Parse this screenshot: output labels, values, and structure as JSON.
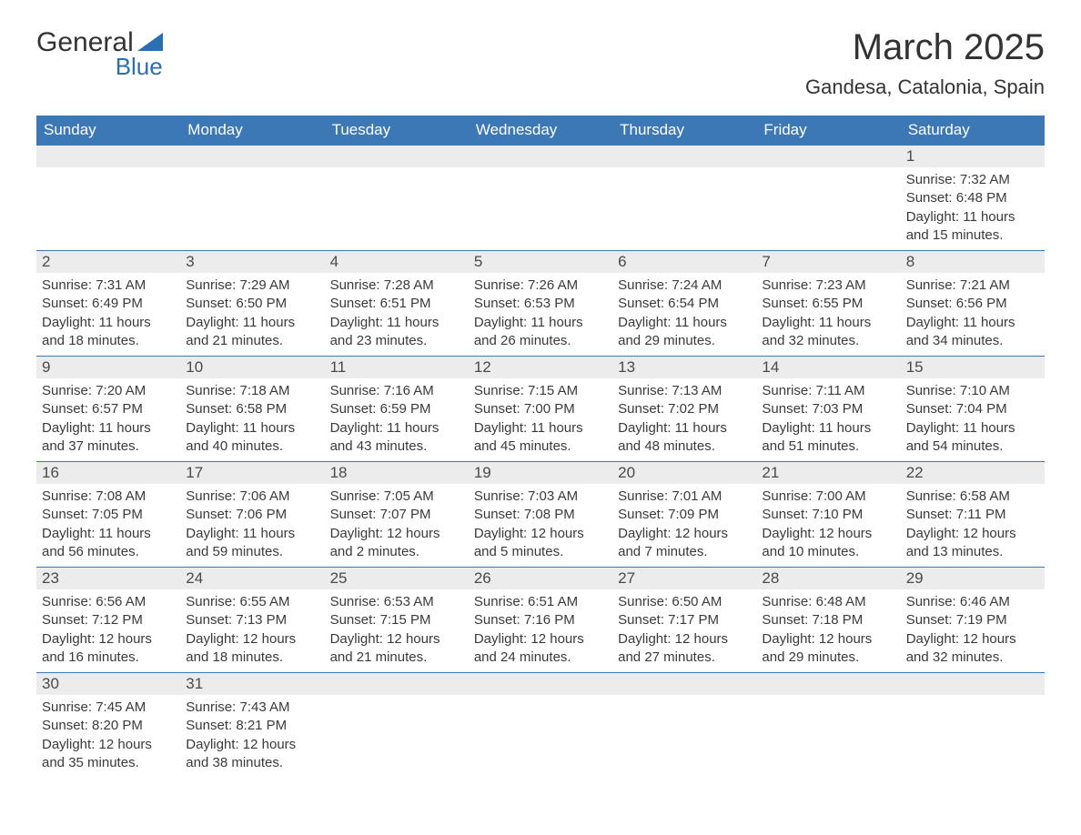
{
  "logo": {
    "text_general": "General",
    "text_blue": "Blue",
    "triangle_color": "#2c6fb0"
  },
  "title": "March 2025",
  "location": "Gandesa, Catalonia, Spain",
  "colors": {
    "header_bg": "#3b78b5",
    "header_fg": "#ffffff",
    "daynum_bg": "#ececec",
    "body_fg": "#3a3a3a",
    "row_border": "#3b78b5",
    "page_bg": "#ffffff"
  },
  "typography": {
    "title_fontsize_pt": 30,
    "location_fontsize_pt": 17,
    "dayheader_fontsize_pt": 13,
    "body_fontsize_pt": 11
  },
  "day_headers": [
    "Sunday",
    "Monday",
    "Tuesday",
    "Wednesday",
    "Thursday",
    "Friday",
    "Saturday"
  ],
  "labels": {
    "sunrise": "Sunrise:",
    "sunset": "Sunset:",
    "daylight": "Daylight:"
  },
  "weeks": [
    [
      null,
      null,
      null,
      null,
      null,
      null,
      {
        "n": "1",
        "sunrise": "7:32 AM",
        "sunset": "6:48 PM",
        "daylight": "11 hours and 15 minutes."
      }
    ],
    [
      {
        "n": "2",
        "sunrise": "7:31 AM",
        "sunset": "6:49 PM",
        "daylight": "11 hours and 18 minutes."
      },
      {
        "n": "3",
        "sunrise": "7:29 AM",
        "sunset": "6:50 PM",
        "daylight": "11 hours and 21 minutes."
      },
      {
        "n": "4",
        "sunrise": "7:28 AM",
        "sunset": "6:51 PM",
        "daylight": "11 hours and 23 minutes."
      },
      {
        "n": "5",
        "sunrise": "7:26 AM",
        "sunset": "6:53 PM",
        "daylight": "11 hours and 26 minutes."
      },
      {
        "n": "6",
        "sunrise": "7:24 AM",
        "sunset": "6:54 PM",
        "daylight": "11 hours and 29 minutes."
      },
      {
        "n": "7",
        "sunrise": "7:23 AM",
        "sunset": "6:55 PM",
        "daylight": "11 hours and 32 minutes."
      },
      {
        "n": "8",
        "sunrise": "7:21 AM",
        "sunset": "6:56 PM",
        "daylight": "11 hours and 34 minutes."
      }
    ],
    [
      {
        "n": "9",
        "sunrise": "7:20 AM",
        "sunset": "6:57 PM",
        "daylight": "11 hours and 37 minutes."
      },
      {
        "n": "10",
        "sunrise": "7:18 AM",
        "sunset": "6:58 PM",
        "daylight": "11 hours and 40 minutes."
      },
      {
        "n": "11",
        "sunrise": "7:16 AM",
        "sunset": "6:59 PM",
        "daylight": "11 hours and 43 minutes."
      },
      {
        "n": "12",
        "sunrise": "7:15 AM",
        "sunset": "7:00 PM",
        "daylight": "11 hours and 45 minutes."
      },
      {
        "n": "13",
        "sunrise": "7:13 AM",
        "sunset": "7:02 PM",
        "daylight": "11 hours and 48 minutes."
      },
      {
        "n": "14",
        "sunrise": "7:11 AM",
        "sunset": "7:03 PM",
        "daylight": "11 hours and 51 minutes."
      },
      {
        "n": "15",
        "sunrise": "7:10 AM",
        "sunset": "7:04 PM",
        "daylight": "11 hours and 54 minutes."
      }
    ],
    [
      {
        "n": "16",
        "sunrise": "7:08 AM",
        "sunset": "7:05 PM",
        "daylight": "11 hours and 56 minutes."
      },
      {
        "n": "17",
        "sunrise": "7:06 AM",
        "sunset": "7:06 PM",
        "daylight": "11 hours and 59 minutes."
      },
      {
        "n": "18",
        "sunrise": "7:05 AM",
        "sunset": "7:07 PM",
        "daylight": "12 hours and 2 minutes."
      },
      {
        "n": "19",
        "sunrise": "7:03 AM",
        "sunset": "7:08 PM",
        "daylight": "12 hours and 5 minutes."
      },
      {
        "n": "20",
        "sunrise": "7:01 AM",
        "sunset": "7:09 PM",
        "daylight": "12 hours and 7 minutes."
      },
      {
        "n": "21",
        "sunrise": "7:00 AM",
        "sunset": "7:10 PM",
        "daylight": "12 hours and 10 minutes."
      },
      {
        "n": "22",
        "sunrise": "6:58 AM",
        "sunset": "7:11 PM",
        "daylight": "12 hours and 13 minutes."
      }
    ],
    [
      {
        "n": "23",
        "sunrise": "6:56 AM",
        "sunset": "7:12 PM",
        "daylight": "12 hours and 16 minutes."
      },
      {
        "n": "24",
        "sunrise": "6:55 AM",
        "sunset": "7:13 PM",
        "daylight": "12 hours and 18 minutes."
      },
      {
        "n": "25",
        "sunrise": "6:53 AM",
        "sunset": "7:15 PM",
        "daylight": "12 hours and 21 minutes."
      },
      {
        "n": "26",
        "sunrise": "6:51 AM",
        "sunset": "7:16 PM",
        "daylight": "12 hours and 24 minutes."
      },
      {
        "n": "27",
        "sunrise": "6:50 AM",
        "sunset": "7:17 PM",
        "daylight": "12 hours and 27 minutes."
      },
      {
        "n": "28",
        "sunrise": "6:48 AM",
        "sunset": "7:18 PM",
        "daylight": "12 hours and 29 minutes."
      },
      {
        "n": "29",
        "sunrise": "6:46 AM",
        "sunset": "7:19 PM",
        "daylight": "12 hours and 32 minutes."
      }
    ],
    [
      {
        "n": "30",
        "sunrise": "7:45 AM",
        "sunset": "8:20 PM",
        "daylight": "12 hours and 35 minutes."
      },
      {
        "n": "31",
        "sunrise": "7:43 AM",
        "sunset": "8:21 PM",
        "daylight": "12 hours and 38 minutes."
      },
      null,
      null,
      null,
      null,
      null
    ]
  ]
}
